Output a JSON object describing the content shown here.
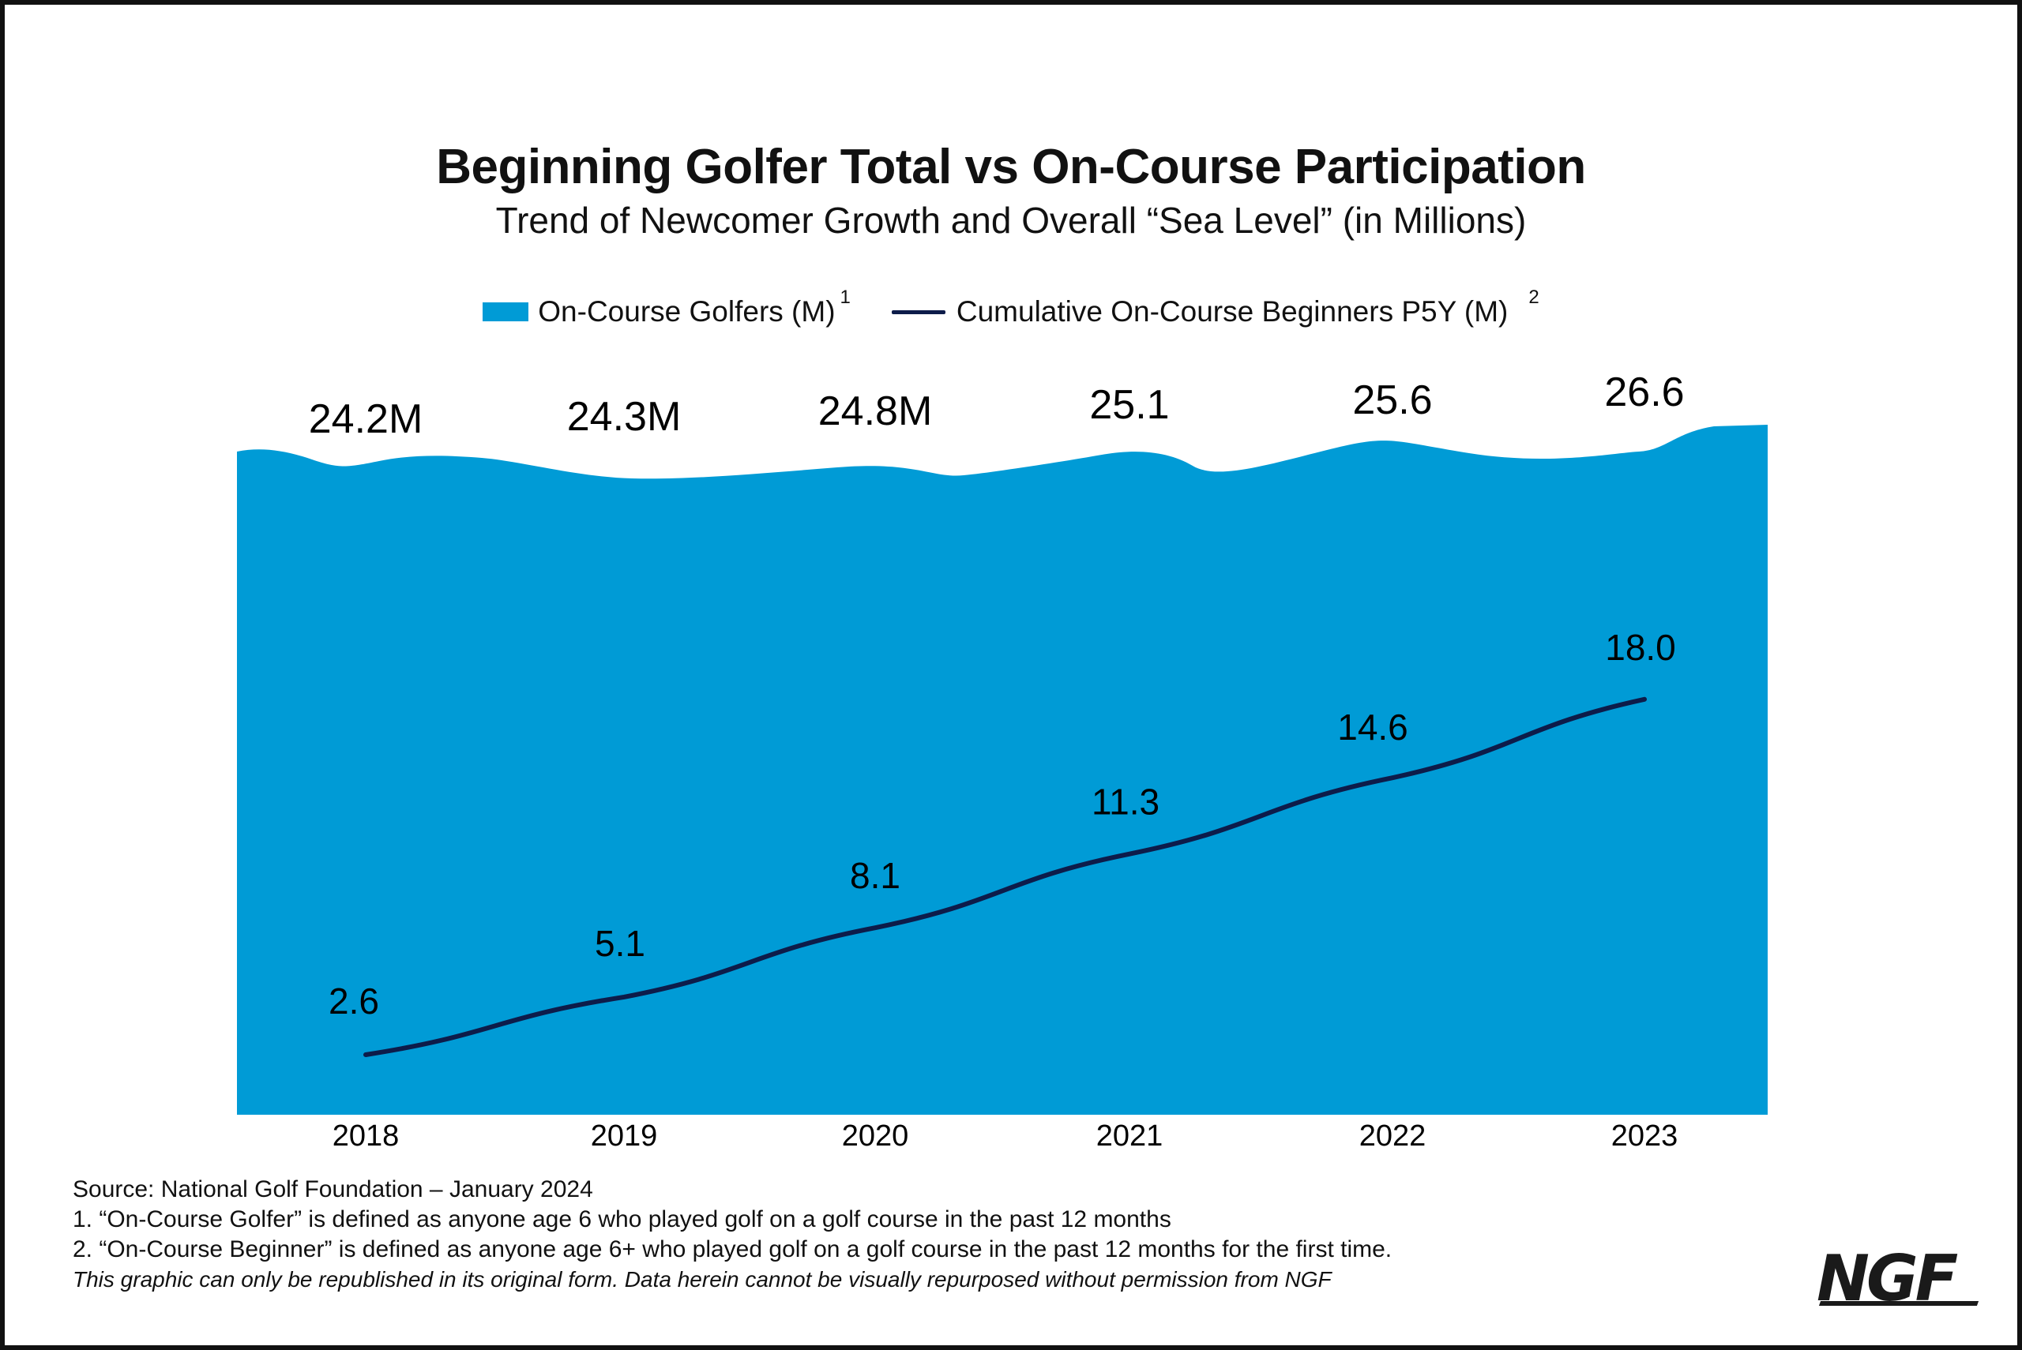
{
  "title": "Beginning Golfer Total vs On-Course Participation",
  "subtitle": "Trend of Newcomer Growth and Overall “Sea Level” (in Millions)",
  "legend": {
    "area_label": "On-Course Golfers (M)",
    "area_sup": "1",
    "line_label": "Cumulative On-Course Beginners P5Y (M)",
    "line_sup": "2"
  },
  "colors": {
    "area": "#009bd6",
    "line": "#0d1c4a",
    "text": "#111111"
  },
  "chart_data": {
    "type": "area",
    "categories": [
      "2018",
      "2019",
      "2020",
      "2021",
      "2022",
      "2023"
    ],
    "series": [
      {
        "name": "On-Course Golfers (M)",
        "type": "area",
        "values": [
          24.2,
          24.3,
          24.8,
          25.1,
          25.6,
          26.6
        ],
        "labels": [
          "24.2M",
          "24.3M",
          "24.8M",
          "25.1",
          "25.6",
          "26.6"
        ]
      },
      {
        "name": "Cumulative On-Course Beginners P5Y (M)",
        "type": "line",
        "values": [
          2.6,
          5.1,
          8.1,
          11.3,
          14.6,
          18.0
        ],
        "labels": [
          "2.6",
          "5.1",
          "8.1",
          "11.3",
          "14.6",
          "18.0"
        ]
      }
    ],
    "title": "Beginning Golfer Total vs On-Course Participation",
    "subtitle": "Trend of Newcomer Growth and Overall “Sea Level” (in Millions)",
    "xlabel": "",
    "ylabel": "",
    "ylim": [
      0,
      30
    ],
    "grid": false,
    "legend_position": "top-center"
  },
  "notes": {
    "source": "Source: National Golf Foundation – January 2024",
    "note1": "1. “On-Course Golfer” is defined as anyone age 6 who played golf on a golf course in the past 12 months",
    "note2": "2. “On-Course Beginner” is defined as anyone age 6+ who played golf on a golf course in the past 12 months for the first time.",
    "disclaimer": "This graphic can only be republished in its original form. Data herein cannot be visually repurposed without permission from NGF"
  },
  "logo_text": "NGF"
}
